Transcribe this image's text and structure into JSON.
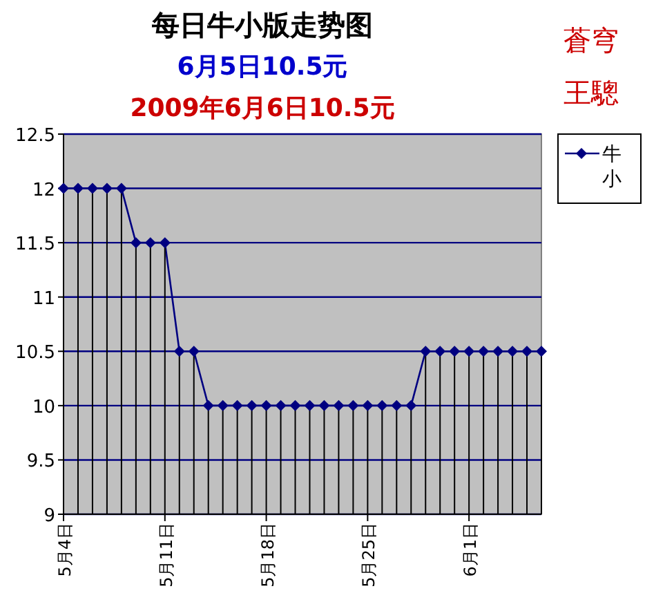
{
  "chart_data": {
    "type": "line",
    "title": "每日牛小版走势图",
    "subtitle": "6月5日10.5元",
    "annotations": [
      "2009年6月6日10.5元",
      "蒼穹",
      "王驄"
    ],
    "x": [
      "--05-04",
      "--05-05",
      "--05-06",
      "--05-07",
      "--05-08",
      "--05-09",
      "--05-10",
      "--05-11",
      "--05-12",
      "--05-13",
      "--05-14",
      "--05-15",
      "--05-16",
      "--05-17",
      "--05-18",
      "--05-19",
      "--05-20",
      "--05-21",
      "--05-22",
      "--05-23",
      "--05-24",
      "--05-25",
      "--05-26",
      "--05-27",
      "--05-28",
      "--05-29",
      "--05-30",
      "--05-31",
      "--06-01",
      "--06-02",
      "--06-03",
      "--06-04",
      "--06-05",
      "--06-06"
    ],
    "series": [
      {
        "name": "牛小",
        "color": "#000080",
        "marker": "none",
        "values": [
          12,
          12,
          12,
          12,
          12,
          11.5,
          11.5,
          11.5,
          10.5,
          10.5,
          10,
          10,
          10,
          10,
          10,
          10,
          10,
          10,
          10,
          10,
          10,
          10,
          10,
          10,
          10,
          10.5,
          10.5,
          10.5,
          10.5,
          10.5,
          10.5,
          10.5,
          10.5,
          10.5
        ]
      },
      {
        "type": "lollipop",
        "color": "#000080",
        "values": [
          12,
          12,
          12,
          12,
          12,
          11.5,
          11.5,
          11.5,
          10.5,
          10.5,
          10,
          10,
          10,
          10,
          10,
          10,
          10,
          10,
          10,
          10,
          10,
          10,
          10,
          10,
          10,
          10.5,
          10.5,
          10.5,
          10.5,
          10.5,
          10.5,
          10.5,
          10.5,
          10.5
        ]
      }
    ],
    "xlim": [
      "--05-04",
      "--06-06"
    ],
    "xticks": [
      {
        "value": "--05-04",
        "label": "5月4日"
      },
      {
        "value": "--05-11",
        "label": "5月11日"
      },
      {
        "value": "--05-18",
        "label": "5月18日"
      },
      {
        "value": "--05-25",
        "label": "5月25日"
      },
      {
        "value": "--06-01",
        "label": "6月1日"
      }
    ],
    "ylim": [
      9,
      12.5
    ],
    "yticks": [
      9,
      9.5,
      10,
      10.5,
      11,
      11.5,
      12,
      12.5
    ],
    "grid": "y",
    "legend": "top right",
    "marker": "diamond",
    "line_style": "solid"
  }
}
